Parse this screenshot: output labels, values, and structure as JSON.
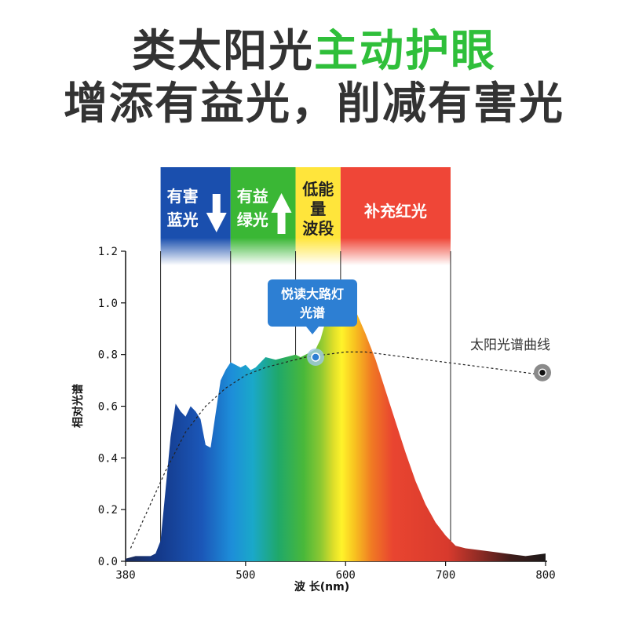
{
  "headline": {
    "line1_dark": "类太阳光",
    "line1_green": "主动护眼",
    "line2": "增添有益光，削减有害光"
  },
  "colors": {
    "headline_dark": "#333333",
    "headline_green": "#2fbf3a",
    "band_blue": "#1a4fae",
    "band_green": "#3ab735",
    "band_yellow": "#ffe53b",
    "band_red": "#ef4637",
    "bubble": "#2d7fd3"
  },
  "bands": [
    {
      "name": "harmful-blue",
      "x0": 415,
      "x1": 485,
      "lines": [
        "有害",
        "蓝光"
      ],
      "arrow": "down",
      "color": "#1a4fae"
    },
    {
      "name": "beneficial-green",
      "x0": 485,
      "x1": 550,
      "lines": [
        "有益",
        "绿光"
      ],
      "arrow": "up",
      "color": "#3ab735"
    },
    {
      "name": "low-energy",
      "x0": 550,
      "x1": 595,
      "lines": [
        "低能",
        "量",
        "波段"
      ],
      "arrow": "",
      "color": "#ffe53b"
    },
    {
      "name": "red-supplement",
      "x0": 595,
      "x1": 705,
      "lines": [
        "补充红光"
      ],
      "arrow": "",
      "color": "#ef4637"
    }
  ],
  "bubble": {
    "lines": [
      "悦读大路灯",
      "光谱"
    ],
    "x": 570
  },
  "sun_label": "太阳光谱曲线",
  "chart_data": {
    "type": "area",
    "xlabel": "波 长(nm)",
    "ylabel": "相对光谱",
    "xlim": [
      380,
      800
    ],
    "ylim": [
      0,
      1.2
    ],
    "xticks": [
      380,
      500,
      600,
      700,
      800
    ],
    "yticks": [
      "0.0",
      "0.2",
      "0.4",
      "0.6",
      "0.8",
      "1.0",
      "1.2"
    ],
    "series": [
      {
        "name": "悦读大路灯光谱",
        "style": "solid-spectral-fill",
        "x": [
          380,
          390,
          400,
          405,
          410,
          415,
          420,
          425,
          430,
          435,
          440,
          445,
          450,
          455,
          460,
          465,
          470,
          475,
          480,
          485,
          490,
          495,
          500,
          505,
          510,
          515,
          520,
          530,
          540,
          550,
          555,
          560,
          570,
          575,
          580,
          590,
          600,
          610,
          620,
          630,
          640,
          650,
          660,
          670,
          680,
          690,
          700,
          710,
          720,
          740,
          760,
          780,
          800
        ],
        "y": [
          0.01,
          0.02,
          0.02,
          0.02,
          0.03,
          0.08,
          0.28,
          0.48,
          0.61,
          0.58,
          0.56,
          0.6,
          0.58,
          0.55,
          0.45,
          0.44,
          0.57,
          0.7,
          0.74,
          0.77,
          0.76,
          0.75,
          0.76,
          0.74,
          0.75,
          0.77,
          0.79,
          0.78,
          0.79,
          0.8,
          0.79,
          0.8,
          0.82,
          0.86,
          0.93,
          0.97,
          0.99,
          0.97,
          0.88,
          0.78,
          0.66,
          0.54,
          0.42,
          0.31,
          0.22,
          0.15,
          0.1,
          0.06,
          0.05,
          0.04,
          0.03,
          0.02,
          0.03
        ]
      },
      {
        "name": "太阳光谱曲线",
        "style": "dashed",
        "x": [
          385,
          400,
          420,
          440,
          460,
          480,
          500,
          520,
          540,
          560,
          580,
          600,
          620,
          640,
          660,
          680,
          700,
          720,
          740,
          760,
          780,
          800
        ],
        "y": [
          0.05,
          0.18,
          0.35,
          0.5,
          0.6,
          0.67,
          0.72,
          0.75,
          0.77,
          0.79,
          0.8,
          0.81,
          0.81,
          0.8,
          0.79,
          0.78,
          0.77,
          0.76,
          0.75,
          0.74,
          0.73,
          0.72
        ]
      }
    ],
    "markers": [
      {
        "x": 570,
        "y": 0.79,
        "style": "blue-dot"
      },
      {
        "x": 800,
        "y": 0.73,
        "style": "black-dot"
      }
    ]
  }
}
